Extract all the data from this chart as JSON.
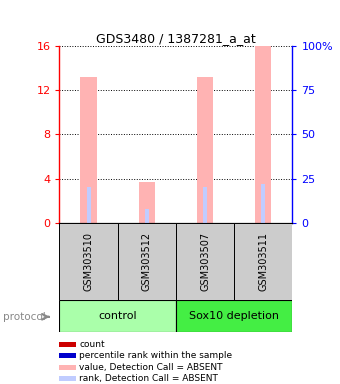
{
  "title": "GDS3480 / 1387281_a_at",
  "samples": [
    "GSM303510",
    "GSM303512",
    "GSM303507",
    "GSM303511"
  ],
  "groups": [
    {
      "name": "control",
      "color": "#aaffaa",
      "samples": [
        0,
        1
      ]
    },
    {
      "name": "Sox10 depletion",
      "color": "#44ee44",
      "samples": [
        2,
        3
      ]
    }
  ],
  "bar_values": [
    13.2,
    3.7,
    13.2,
    16.0
  ],
  "rank_values_pct": [
    20.0,
    8.0,
    20.0,
    22.0
  ],
  "bar_color_absent": "#ffb3b3",
  "rank_color_absent": "#c0ccff",
  "ylim_left": [
    0,
    16
  ],
  "ylim_right": [
    0,
    100
  ],
  "yticks_left": [
    0,
    4,
    8,
    12,
    16
  ],
  "ytick_labels_left": [
    "0",
    "4",
    "8",
    "12",
    "16"
  ],
  "yticks_right": [
    0,
    25,
    50,
    75,
    100
  ],
  "ytick_labels_right": [
    "0",
    "25",
    "50",
    "75",
    "100%"
  ],
  "sample_box_color": "#cccccc",
  "legend_items": [
    {
      "label": "count",
      "color": "#cc0000"
    },
    {
      "label": "percentile rank within the sample",
      "color": "#0000cc"
    },
    {
      "label": "value, Detection Call = ABSENT",
      "color": "#ffb3b3"
    },
    {
      "label": "rank, Detection Call = ABSENT",
      "color": "#c0ccff"
    }
  ],
  "fig_width": 3.4,
  "fig_height": 3.84,
  "dpi": 100
}
